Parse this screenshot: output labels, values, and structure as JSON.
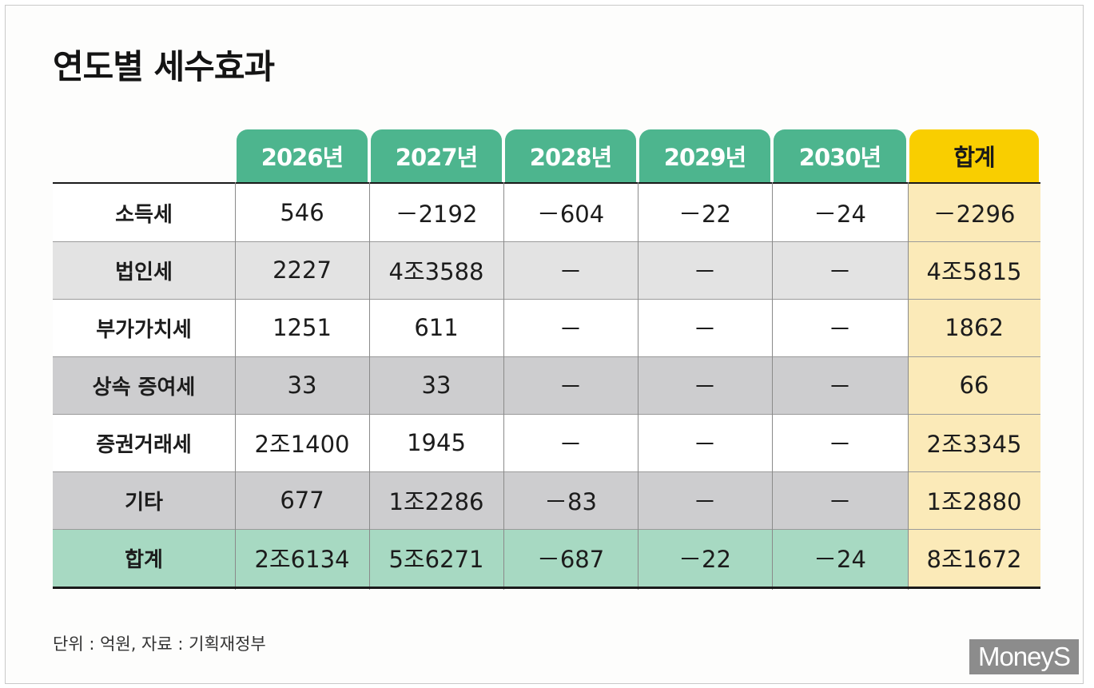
{
  "title": "연도별 세수효과",
  "note": "단위 : 억원, 자료 : 기획재정부",
  "logo": "MoneyS",
  "colors": {
    "header_green": "#4db58e",
    "header_total": "#f9ce00",
    "total_col": "#fbeab8",
    "sum_row": "#a7d9c2"
  },
  "chart_data": {
    "type": "table",
    "columns": [
      "2026년",
      "2027년",
      "2028년",
      "2029년",
      "2030년",
      "합계"
    ],
    "rows": [
      {
        "label": "소득세",
        "values": [
          "546",
          "－2192",
          "－604",
          "－22",
          "－24",
          "－2296"
        ]
      },
      {
        "label": "법인세",
        "values": [
          "2227",
          "4조3588",
          "－",
          "－",
          "－",
          "4조5815"
        ]
      },
      {
        "label": "부가가치세",
        "values": [
          "1251",
          "611",
          "－",
          "－",
          "－",
          "1862"
        ]
      },
      {
        "label": "상속 증여세",
        "values": [
          "33",
          "33",
          "－",
          "－",
          "－",
          "66"
        ]
      },
      {
        "label": "증권거래세",
        "values": [
          "2조1400",
          "1945",
          "－",
          "－",
          "－",
          "2조3345"
        ]
      },
      {
        "label": "기타",
        "values": [
          "677",
          "1조2286",
          "－83",
          "－",
          "－",
          "1조2880"
        ]
      },
      {
        "label": "합계",
        "values": [
          "2조6134",
          "5조6271",
          "－687",
          "－22",
          "－24",
          "8조1672"
        ]
      }
    ]
  }
}
